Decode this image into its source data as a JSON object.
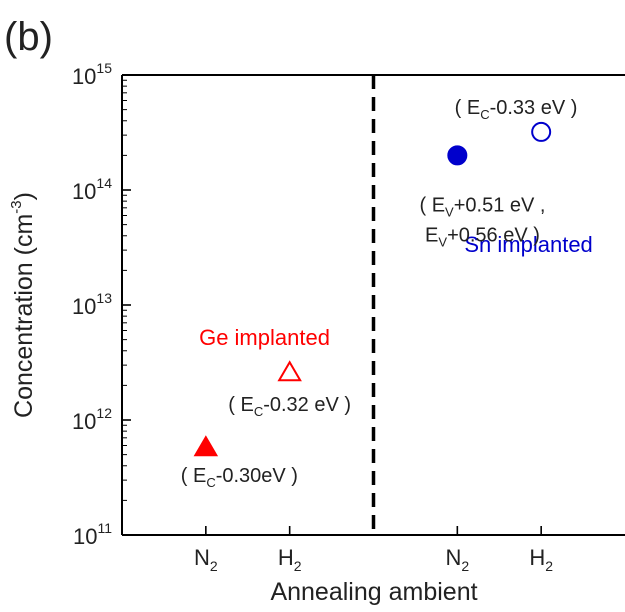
{
  "chart_data": {
    "type": "scatter",
    "panel_label": "(b)",
    "xlabel": "Annealing ambient",
    "ylabel": {
      "main": "Concentration (cm",
      "sup": "-3",
      "tail": ")"
    },
    "yscale": "log",
    "ylim": [
      100000000000.0,
      1000000000000000.0
    ],
    "y_ticks": [
      {
        "value": 100000000000.0,
        "base": "10",
        "exp": "11"
      },
      {
        "value": 1000000000000.0,
        "base": "10",
        "exp": "12"
      },
      {
        "value": 10000000000000.0,
        "base": "10",
        "exp": "13"
      },
      {
        "value": 100000000000000.0,
        "base": "10",
        "exp": "14"
      },
      {
        "value": 1000000000000000.0,
        "base": "10",
        "exp": "15"
      }
    ],
    "x_categories": [
      {
        "pos": 1,
        "base": "N",
        "sub": "2"
      },
      {
        "pos": 2,
        "base": "H",
        "sub": "2"
      },
      {
        "pos": 4,
        "base": "N",
        "sub": "2"
      },
      {
        "pos": 5,
        "base": "H",
        "sub": "2"
      }
    ],
    "xlim": [
      0,
      6
    ],
    "divider_x": 3,
    "groups": [
      {
        "label": "Ge implanted",
        "color": "#ff0000",
        "label_at": {
          "x": 1.7,
          "y": 4500000000000.0
        }
      },
      {
        "label": "Sn implanted",
        "color": "#0000cc",
        "label_at": {
          "x": 4.85,
          "y": 29000000000000.0
        }
      }
    ],
    "points": [
      {
        "x": 1,
        "y": 580000000000.0,
        "marker": "triangle",
        "filled": true,
        "color": "#ff0000",
        "annotation": [
          "( E|C|-0.30eV )"
        ],
        "ann_at": {
          "x": 1.4,
          "y": 290000000000.0
        }
      },
      {
        "x": 2,
        "y": 2600000000000.0,
        "marker": "triangle",
        "filled": false,
        "color": "#ff0000",
        "annotation": [
          "( E|C|-0.32 eV )"
        ],
        "ann_at": {
          "x": 2.0,
          "y": 1200000000000.0
        }
      },
      {
        "x": 4,
        "y": 200000000000000.0,
        "marker": "circle",
        "filled": true,
        "color": "#0000cc",
        "annotation": [
          "( E|V|+0.51 eV ,",
          "E|V|+0.56 eV )"
        ],
        "ann_at": {
          "x": 4.3,
          "y": 65000000000000.0
        }
      },
      {
        "x": 5,
        "y": 320000000000000.0,
        "marker": "circle",
        "filled": false,
        "color": "#0000cc",
        "annotation": [
          "( E|C|-0.33 eV )"
        ],
        "ann_at": {
          "x": 4.7,
          "y": 460000000000000.0
        }
      }
    ],
    "divider_style": "dashed",
    "grid": false
  }
}
